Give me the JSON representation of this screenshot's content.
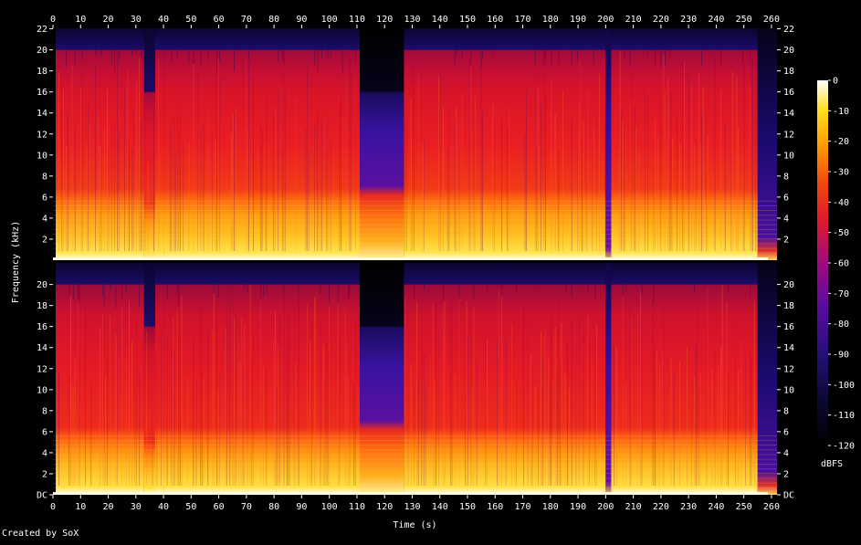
{
  "chart_data": {
    "type": "heatmap",
    "title": "",
    "xlabel": "Time (s)",
    "ylabel": "Frequency (kHz)",
    "x_ticks": [
      "0",
      "10",
      "20",
      "30",
      "40",
      "50",
      "60",
      "70",
      "80",
      "90",
      "100",
      "110",
      "120",
      "130",
      "140",
      "150",
      "160",
      "170",
      "180",
      "190",
      "200",
      "210",
      "220",
      "230",
      "240",
      "250",
      "260"
    ],
    "xlim": [
      0,
      262
    ],
    "channels": [
      {
        "y_ticks": [
          "2",
          "4",
          "6",
          "8",
          "10",
          "12",
          "14",
          "16",
          "18",
          "20",
          "22"
        ]
      },
      {
        "y_ticks": [
          "DC",
          "2",
          "4",
          "6",
          "8",
          "10",
          "12",
          "14",
          "16",
          "18",
          "20"
        ]
      }
    ],
    "ylim_khz": [
      0,
      22.05
    ],
    "colorbar": {
      "label": "dBFS",
      "ticks": [
        "0",
        "-10",
        "-20",
        "-30",
        "-40",
        "-50",
        "-60",
        "-70",
        "-80",
        "-90",
        "-100",
        "-110",
        "-120"
      ],
      "range": [
        -120,
        0
      ]
    },
    "segments": [
      {
        "t0": 0,
        "t1": 1,
        "type": "silent"
      },
      {
        "t0": 1,
        "t1": 33,
        "type": "music",
        "cutoff_khz": 20
      },
      {
        "t0": 33,
        "t1": 37,
        "type": "music",
        "cutoff_khz": 16
      },
      {
        "t0": 37,
        "t1": 40,
        "type": "music",
        "cutoff_khz": 20
      },
      {
        "t0": 40,
        "t1": 111,
        "type": "music",
        "cutoff_khz": 20
      },
      {
        "t0": 111,
        "t1": 127,
        "type": "quiet",
        "cutoff_khz": 16
      },
      {
        "t0": 127,
        "t1": 200,
        "type": "music",
        "cutoff_khz": 20
      },
      {
        "t0": 200,
        "t1": 202,
        "type": "gap"
      },
      {
        "t0": 202,
        "t1": 255,
        "type": "music",
        "cutoff_khz": 20
      },
      {
        "t0": 255,
        "t1": 262,
        "type": "fade"
      }
    ]
  },
  "credit": "Created by SoX",
  "colors": {
    "background": "#000000",
    "text": "#ffffff"
  }
}
